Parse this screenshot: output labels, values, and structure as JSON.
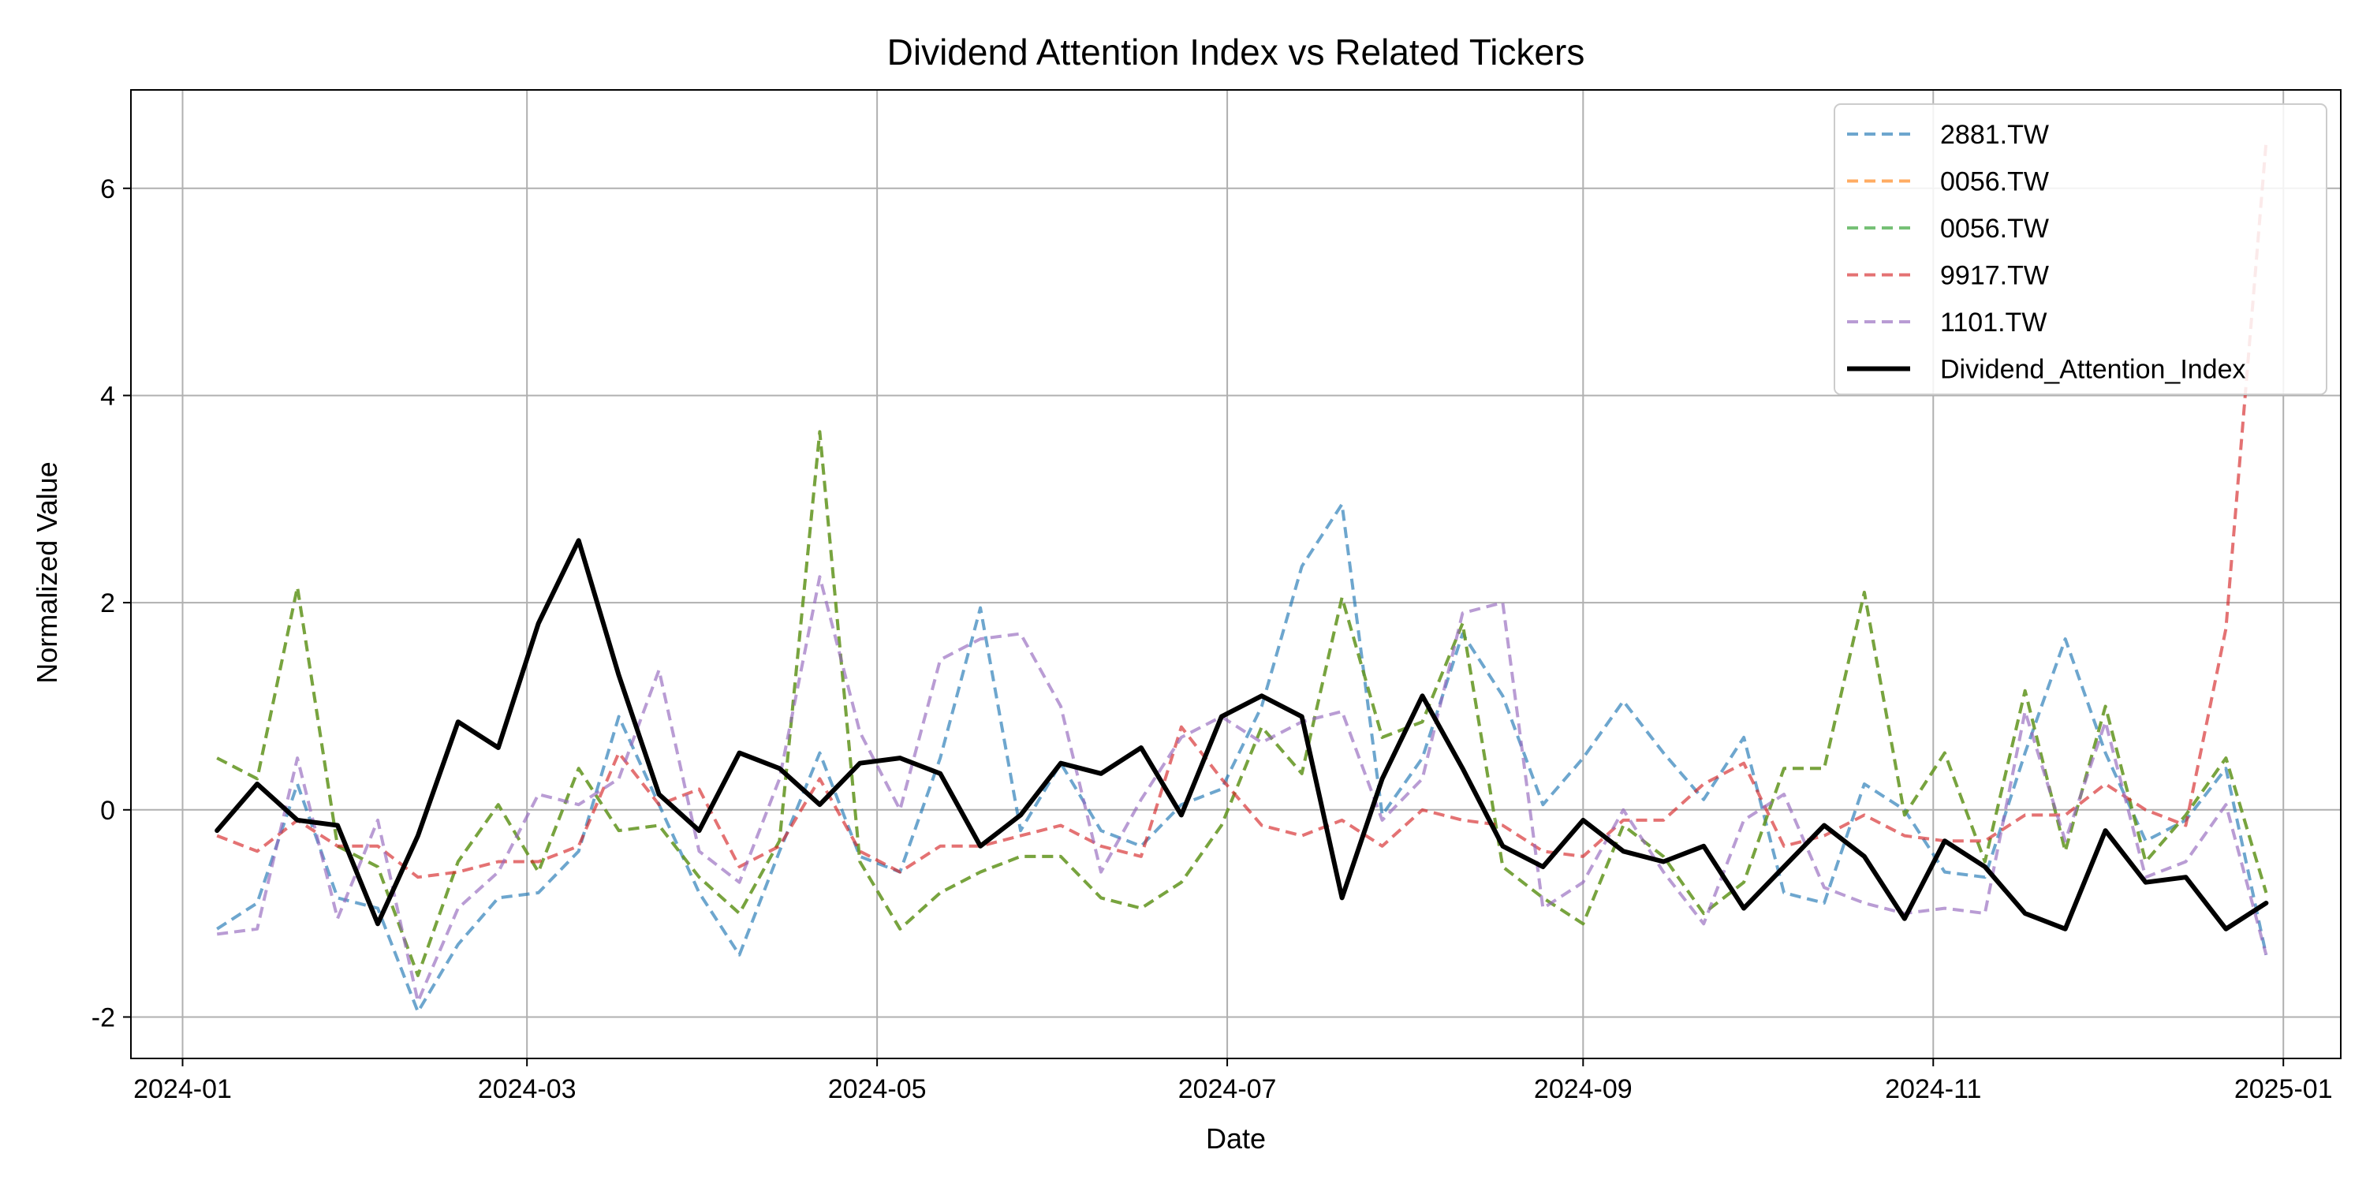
{
  "chart_data": {
    "type": "line",
    "title": "Dividend Attention Index vs Related Tickers",
    "xlabel": "Date",
    "ylabel": "Normalized Value",
    "xlim": [
      "2023-12-23",
      "2025-01-11"
    ],
    "ylim": [
      -2.4,
      6.95
    ],
    "x_ticks": [
      "2024-01-01",
      "2024-03-01",
      "2024-05-01",
      "2024-07-01",
      "2024-09-01",
      "2024-11-01",
      "2025-01-01"
    ],
    "x_tick_labels": [
      "2024-01",
      "2024-03",
      "2024-05",
      "2024-07",
      "2024-09",
      "2024-11",
      "2025-01"
    ],
    "y_ticks": [
      -2,
      0,
      2,
      4,
      6
    ],
    "y_tick_labels": [
      "-2",
      "0",
      "2",
      "4",
      "6"
    ],
    "grid": true,
    "legend_position": "top-right",
    "x": [
      "2024-01-07",
      "2024-01-14",
      "2024-01-21",
      "2024-01-28",
      "2024-02-04",
      "2024-02-11",
      "2024-02-18",
      "2024-02-25",
      "2024-03-03",
      "2024-03-10",
      "2024-03-17",
      "2024-03-24",
      "2024-03-31",
      "2024-04-07",
      "2024-04-14",
      "2024-04-21",
      "2024-04-28",
      "2024-05-05",
      "2024-05-12",
      "2024-05-19",
      "2024-05-26",
      "2024-06-02",
      "2024-06-09",
      "2024-06-16",
      "2024-06-23",
      "2024-06-30",
      "2024-07-07",
      "2024-07-14",
      "2024-07-21",
      "2024-07-28",
      "2024-08-04",
      "2024-08-11",
      "2024-08-18",
      "2024-08-25",
      "2024-09-01",
      "2024-09-08",
      "2024-09-15",
      "2024-09-22",
      "2024-09-29",
      "2024-10-06",
      "2024-10-13",
      "2024-10-20",
      "2024-10-27",
      "2024-11-03",
      "2024-11-10",
      "2024-11-17",
      "2024-11-24",
      "2024-12-01",
      "2024-12-08",
      "2024-12-15",
      "2024-12-22",
      "2024-12-29"
    ],
    "series": [
      {
        "name": "2881.TW",
        "color": "#1f77b4",
        "opacity": 0.65,
        "dashed": true,
        "width": 2,
        "values": [
          -1.15,
          -0.9,
          0.25,
          -0.85,
          -0.95,
          -1.95,
          -1.3,
          -0.85,
          -0.8,
          -0.4,
          0.9,
          0.05,
          -0.8,
          -1.4,
          -0.4,
          0.55,
          -0.45,
          -0.6,
          0.5,
          1.95,
          -0.2,
          0.45,
          -0.2,
          -0.35,
          0.05,
          0.2,
          1.0,
          2.35,
          2.95,
          -0.05,
          0.5,
          1.7,
          1.1,
          0.05,
          0.5,
          1.05,
          0.55,
          0.1,
          0.7,
          -0.8,
          -0.9,
          0.25,
          0.0,
          -0.6,
          -0.65,
          0.55,
          1.65,
          0.55,
          -0.3,
          -0.1,
          0.4,
          -1.4
        ]
      },
      {
        "name": "0056.TW",
        "color": "#ff7f0e",
        "opacity": 0.65,
        "dashed": true,
        "width": 2,
        "values": [
          0.5,
          0.3,
          2.15,
          -0.35,
          -0.55,
          -1.6,
          -0.5,
          0.05,
          -0.6,
          0.4,
          -0.2,
          -0.15,
          -0.65,
          -1.0,
          -0.3,
          3.65,
          -0.5,
          -1.15,
          -0.8,
          -0.6,
          -0.45,
          -0.45,
          -0.85,
          -0.95,
          -0.7,
          -0.15,
          0.8,
          0.35,
          2.05,
          0.7,
          0.85,
          1.8,
          -0.55,
          -0.85,
          -1.1,
          -0.15,
          -0.45,
          -1.0,
          -0.7,
          0.4,
          0.4,
          2.1,
          -0.05,
          0.55,
          -0.5,
          1.15,
          -0.4,
          1.0,
          -0.5,
          -0.05,
          0.5,
          -0.8
        ]
      },
      {
        "name": "0056.TW",
        "color": "#2ca02c",
        "opacity": 0.65,
        "dashed": true,
        "width": 2,
        "values": [
          0.5,
          0.3,
          2.15,
          -0.35,
          -0.55,
          -1.6,
          -0.5,
          0.05,
          -0.6,
          0.4,
          -0.2,
          -0.15,
          -0.65,
          -1.0,
          -0.3,
          3.65,
          -0.5,
          -1.15,
          -0.8,
          -0.6,
          -0.45,
          -0.45,
          -0.85,
          -0.95,
          -0.7,
          -0.15,
          0.8,
          0.35,
          2.05,
          0.7,
          0.85,
          1.8,
          -0.55,
          -0.85,
          -1.1,
          -0.15,
          -0.45,
          -1.0,
          -0.7,
          0.4,
          0.4,
          2.1,
          -0.05,
          0.55,
          -0.5,
          1.15,
          -0.4,
          1.0,
          -0.5,
          -0.05,
          0.5,
          -0.8
        ]
      },
      {
        "name": "9917.TW",
        "color": "#d62728",
        "opacity": 0.65,
        "dashed": true,
        "width": 2,
        "values": [
          -0.25,
          -0.4,
          -0.1,
          -0.35,
          -0.35,
          -0.65,
          -0.6,
          -0.5,
          -0.5,
          -0.35,
          0.55,
          0.05,
          0.2,
          -0.55,
          -0.35,
          0.3,
          -0.4,
          -0.6,
          -0.35,
          -0.35,
          -0.25,
          -0.15,
          -0.35,
          -0.45,
          0.8,
          0.3,
          -0.15,
          -0.25,
          -0.1,
          -0.35,
          0.0,
          -0.1,
          -0.15,
          -0.4,
          -0.45,
          -0.1,
          -0.1,
          0.25,
          0.45,
          -0.35,
          -0.25,
          -0.05,
          -0.25,
          -0.3,
          -0.3,
          -0.05,
          -0.05,
          0.25,
          0.0,
          -0.15,
          1.75,
          6.45
        ]
      },
      {
        "name": "1101.TW",
        "color": "#9467bd",
        "opacity": 0.65,
        "dashed": true,
        "width": 2,
        "values": [
          -1.2,
          -1.15,
          0.5,
          -1.05,
          -0.1,
          -1.85,
          -0.95,
          -0.6,
          0.15,
          0.05,
          0.3,
          1.35,
          -0.4,
          -0.7,
          0.3,
          2.25,
          0.75,
          0.0,
          1.45,
          1.65,
          1.7,
          1.0,
          -0.6,
          0.1,
          0.7,
          0.9,
          0.65,
          0.85,
          0.95,
          -0.1,
          0.3,
          1.9,
          2.0,
          -0.95,
          -0.7,
          0.0,
          -0.6,
          -1.1,
          -0.1,
          0.15,
          -0.75,
          -0.9,
          -1.0,
          -0.95,
          -1.0,
          0.95,
          -0.3,
          0.85,
          -0.65,
          -0.5,
          0.05,
          -1.4
        ]
      },
      {
        "name": "Dividend_Attention_Index",
        "color": "#000000",
        "opacity": 1,
        "dashed": false,
        "width": 3,
        "values": [
          -0.2,
          0.25,
          -0.1,
          -0.15,
          -1.1,
          -0.25,
          0.85,
          0.6,
          1.8,
          2.6,
          1.3,
          0.15,
          -0.2,
          0.55,
          0.4,
          0.05,
          0.45,
          0.5,
          0.35,
          -0.35,
          -0.05,
          0.45,
          0.35,
          0.6,
          -0.05,
          0.9,
          1.1,
          0.9,
          -0.85,
          0.3,
          1.1,
          0.4,
          -0.35,
          -0.55,
          -0.1,
          -0.4,
          -0.5,
          -0.35,
          -0.95,
          -0.55,
          -0.15,
          -0.45,
          -1.05,
          -0.3,
          -0.55,
          -1.0,
          -1.15,
          -0.2,
          -0.7,
          -0.65,
          -1.15,
          -0.9
        ]
      }
    ]
  }
}
